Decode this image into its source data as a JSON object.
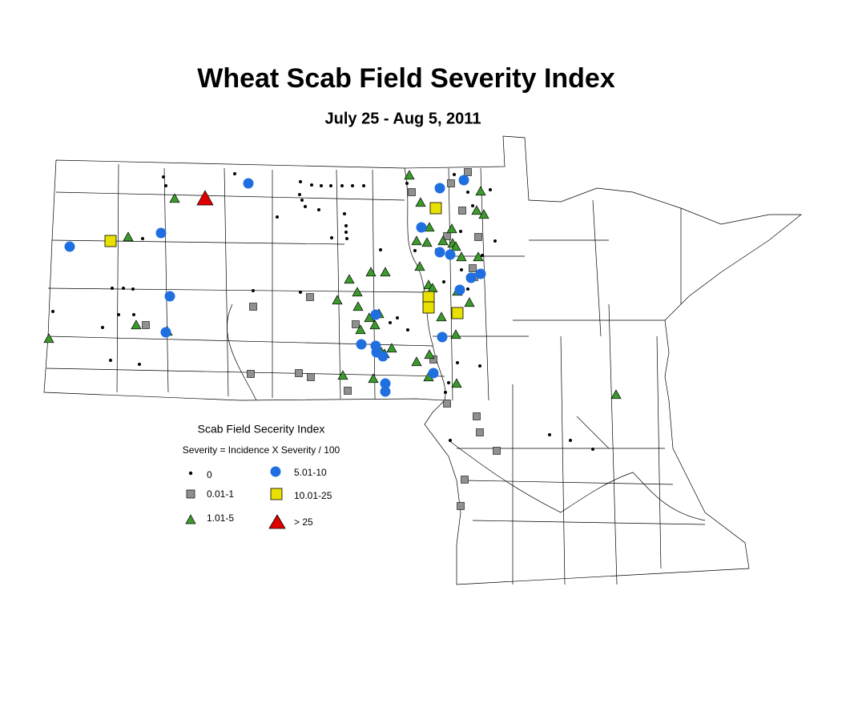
{
  "header": {
    "title": "Wheat Scab Field Severity Index",
    "subtitle": "July 25 - Aug 5, 2011"
  },
  "legend": {
    "title": "Scab Field Secerity Index",
    "formula": "Severity = Incidence X Severity / 100",
    "items": [
      {
        "label": "0"
      },
      {
        "label": "0.01-1"
      },
      {
        "label": "1.01-5"
      },
      {
        "label": "5.01-10"
      },
      {
        "label": "10.01-25"
      },
      {
        "label": "> 25"
      }
    ]
  }
}
